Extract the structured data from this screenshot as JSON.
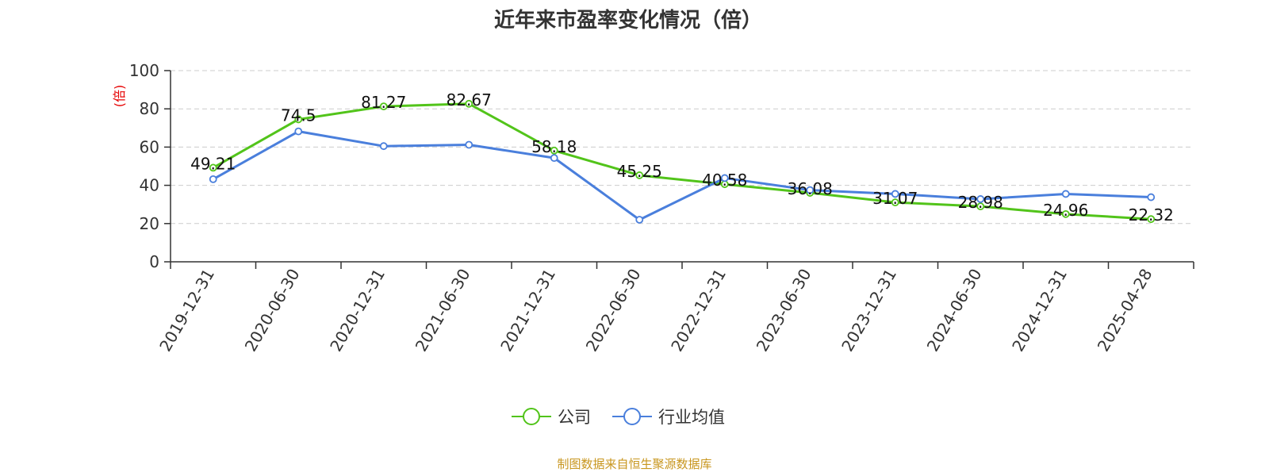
{
  "footer": "制图数据来自恒生聚源数据库",
  "colors": {
    "company": "#52c41a",
    "industry": "#4a7fdc",
    "grid": "#cccccc",
    "axis": "#333333",
    "ylabel": "#e60000",
    "footer": "#c8961e"
  },
  "chart_data": {
    "type": "line",
    "title": "近年来市盈率变化情况（倍）",
    "xlabel": "",
    "ylabel": "(倍)",
    "ylim": [
      0,
      100
    ],
    "yticks": [
      0,
      20,
      40,
      60,
      80,
      100
    ],
    "grid": true,
    "legend_position": "bottom",
    "categories": [
      "2019-12-31",
      "2020-06-30",
      "2020-12-31",
      "2021-06-30",
      "2021-12-31",
      "2022-06-30",
      "2022-12-31",
      "2023-06-30",
      "2023-12-31",
      "2024-06-30",
      "2024-12-31",
      "2025-04-28"
    ],
    "series": [
      {
        "name": "公司",
        "color": "#52c41a",
        "values": [
          49.21,
          74.5,
          81.27,
          82.67,
          58.18,
          45.25,
          40.58,
          36.08,
          31.07,
          28.98,
          24.96,
          22.32
        ],
        "data_labels": [
          "49.21",
          "74.5",
          "81.27",
          "82.67",
          "58.18",
          "45.25",
          "40.58",
          "36.08",
          "31.07",
          "28.98",
          "24.96",
          "22.32"
        ]
      },
      {
        "name": "行业均值",
        "color": "#4a7fdc",
        "values": [
          43.2,
          68.2,
          60.5,
          61.2,
          54.3,
          22.0,
          43.8,
          37.5,
          35.5,
          32.8,
          35.5,
          33.8
        ]
      }
    ]
  }
}
